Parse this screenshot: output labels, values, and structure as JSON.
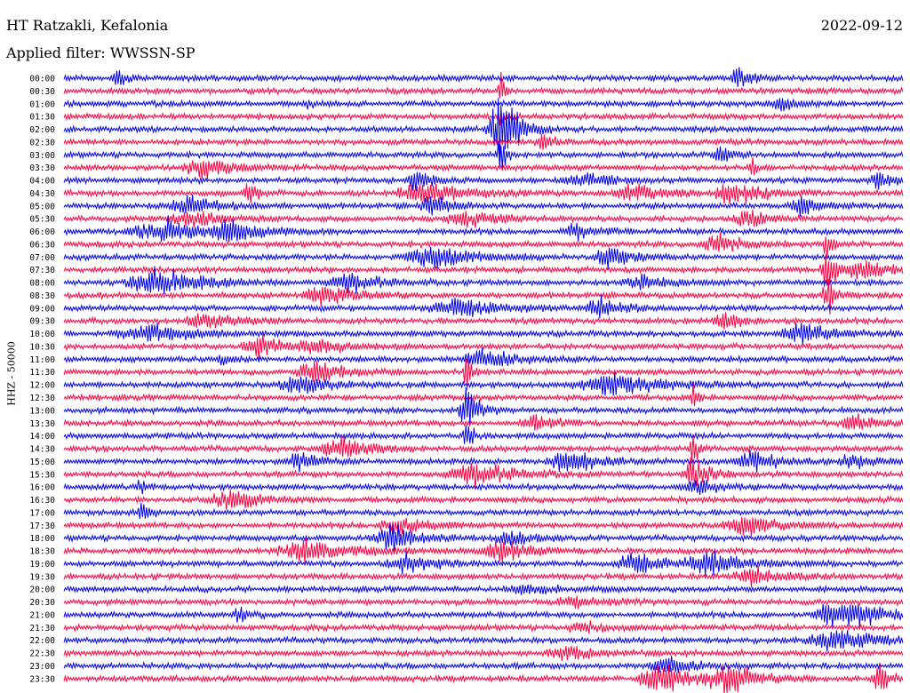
{
  "header": {
    "title": "HT Ratzakli, Kefalonia",
    "date": "2022-09-12",
    "filter": "Applied filter: WWSSN-SP"
  },
  "colors": {
    "traceA": "#0000ee",
    "traceB": "#ff0040",
    "background": "#ffffff"
  },
  "chart_data": {
    "type": "line",
    "title": "HT Ratzakli, Kefalonia",
    "ylabel": "HHZ - 50000",
    "xlabel": "",
    "grid": false,
    "legend": "none",
    "row_labels": [
      "00:00",
      "00:30",
      "01:00",
      "01:30",
      "02:00",
      "02:30",
      "03:00",
      "03:30",
      "04:00",
      "04:30",
      "05:00",
      "05:30",
      "06:00",
      "06:30",
      "07:00",
      "07:30",
      "08:00",
      "08:30",
      "09:00",
      "09:30",
      "10:00",
      "10:30",
      "11:00",
      "11:30",
      "12:00",
      "12:30",
      "13:00",
      "13:30",
      "14:00",
      "14:30",
      "15:00",
      "15:30",
      "16:00",
      "16:30",
      "17:00",
      "17:30",
      "18:00",
      "18:30",
      "19:00",
      "19:30",
      "20:00",
      "20:30",
      "21:00",
      "21:30",
      "22:00",
      "22:30",
      "23:00",
      "23:30"
    ],
    "row_colors": [
      "#0000ee",
      "#ff0040"
    ],
    "events": [
      {
        "row": 0,
        "t": 0.065,
        "amp": 0.8,
        "dur": 0.01
      },
      {
        "row": 0,
        "t": 0.805,
        "amp": 1.2,
        "dur": 0.012
      },
      {
        "row": 1,
        "t": 0.52,
        "amp": 1.8,
        "dur": 0.004
      },
      {
        "row": 2,
        "t": 0.29,
        "amp": 0.4,
        "dur": 0.006
      },
      {
        "row": 2,
        "t": 0.855,
        "amp": 0.6,
        "dur": 0.02
      },
      {
        "row": 3,
        "t": 0.52,
        "amp": 1.0,
        "dur": 0.004
      },
      {
        "row": 4,
        "t": 0.52,
        "amp": 3.5,
        "dur": 0.018
      },
      {
        "row": 5,
        "t": 0.57,
        "amp": 1.0,
        "dur": 0.01
      },
      {
        "row": 6,
        "t": 0.52,
        "amp": 2.0,
        "dur": 0.006
      },
      {
        "row": 6,
        "t": 0.78,
        "amp": 1.1,
        "dur": 0.01
      },
      {
        "row": 7,
        "t": 0.165,
        "amp": 1.0,
        "dur": 0.03
      },
      {
        "row": 7,
        "t": 0.82,
        "amp": 1.0,
        "dur": 0.006
      },
      {
        "row": 8,
        "t": 0.42,
        "amp": 1.0,
        "dur": 0.015
      },
      {
        "row": 8,
        "t": 0.62,
        "amp": 0.7,
        "dur": 0.03
      },
      {
        "row": 8,
        "t": 0.97,
        "amp": 0.8,
        "dur": 0.015
      },
      {
        "row": 9,
        "t": 0.22,
        "amp": 1.1,
        "dur": 0.01
      },
      {
        "row": 9,
        "t": 0.43,
        "amp": 1.1,
        "dur": 0.04
      },
      {
        "row": 9,
        "t": 0.68,
        "amp": 0.9,
        "dur": 0.03
      },
      {
        "row": 9,
        "t": 0.8,
        "amp": 1.1,
        "dur": 0.03
      },
      {
        "row": 10,
        "t": 0.15,
        "amp": 0.9,
        "dur": 0.03
      },
      {
        "row": 10,
        "t": 0.44,
        "amp": 1.0,
        "dur": 0.02
      },
      {
        "row": 10,
        "t": 0.88,
        "amp": 1.0,
        "dur": 0.02
      },
      {
        "row": 11,
        "t": 0.15,
        "amp": 0.8,
        "dur": 0.03
      },
      {
        "row": 11,
        "t": 0.48,
        "amp": 0.8,
        "dur": 0.03
      },
      {
        "row": 11,
        "t": 0.815,
        "amp": 1.0,
        "dur": 0.02
      },
      {
        "row": 12,
        "t": 0.12,
        "amp": 1.2,
        "dur": 0.05
      },
      {
        "row": 12,
        "t": 0.2,
        "amp": 0.8,
        "dur": 0.03
      },
      {
        "row": 12,
        "t": 0.61,
        "amp": 0.8,
        "dur": 0.02
      },
      {
        "row": 13,
        "t": 0.78,
        "amp": 0.8,
        "dur": 0.03
      },
      {
        "row": 13,
        "t": 0.91,
        "amp": 1.5,
        "dur": 0.006
      },
      {
        "row": 14,
        "t": 0.44,
        "amp": 1.1,
        "dur": 0.04
      },
      {
        "row": 14,
        "t": 0.65,
        "amp": 1.2,
        "dur": 0.02
      },
      {
        "row": 15,
        "t": 0.95,
        "amp": 1.0,
        "dur": 0.03
      },
      {
        "row": 15,
        "t": 0.91,
        "amp": 2.2,
        "dur": 0.01
      },
      {
        "row": 16,
        "t": 0.11,
        "amp": 1.5,
        "dur": 0.04
      },
      {
        "row": 16,
        "t": 0.34,
        "amp": 1.0,
        "dur": 0.03
      },
      {
        "row": 16,
        "t": 0.69,
        "amp": 0.6,
        "dur": 0.03
      },
      {
        "row": 17,
        "t": 0.31,
        "amp": 1.0,
        "dur": 0.03
      },
      {
        "row": 17,
        "t": 0.91,
        "amp": 2.0,
        "dur": 0.01
      },
      {
        "row": 18,
        "t": 0.47,
        "amp": 1.0,
        "dur": 0.04
      },
      {
        "row": 18,
        "t": 0.64,
        "amp": 1.1,
        "dur": 0.02
      },
      {
        "row": 19,
        "t": 0.17,
        "amp": 1.0,
        "dur": 0.03
      },
      {
        "row": 19,
        "t": 0.79,
        "amp": 0.8,
        "dur": 0.02
      },
      {
        "row": 20,
        "t": 0.1,
        "amp": 0.8,
        "dur": 0.05
      },
      {
        "row": 20,
        "t": 0.88,
        "amp": 1.0,
        "dur": 0.03
      },
      {
        "row": 21,
        "t": 0.23,
        "amp": 1.3,
        "dur": 0.02
      },
      {
        "row": 21,
        "t": 0.3,
        "amp": 0.7,
        "dur": 0.03
      },
      {
        "row": 22,
        "t": 0.19,
        "amp": 0.6,
        "dur": 0.01
      },
      {
        "row": 22,
        "t": 0.5,
        "amp": 1.0,
        "dur": 0.03
      },
      {
        "row": 23,
        "t": 0.3,
        "amp": 1.1,
        "dur": 0.03
      },
      {
        "row": 23,
        "t": 0.48,
        "amp": 2.0,
        "dur": 0.005
      },
      {
        "row": 24,
        "t": 0.28,
        "amp": 0.9,
        "dur": 0.03
      },
      {
        "row": 24,
        "t": 0.65,
        "amp": 1.0,
        "dur": 0.05
      },
      {
        "row": 25,
        "t": 0.75,
        "amp": 1.2,
        "dur": 0.005
      },
      {
        "row": 26,
        "t": 0.48,
        "amp": 2.2,
        "dur": 0.012
      },
      {
        "row": 27,
        "t": 0.56,
        "amp": 0.8,
        "dur": 0.02
      },
      {
        "row": 27,
        "t": 0.94,
        "amp": 0.9,
        "dur": 0.02
      },
      {
        "row": 28,
        "t": 0.48,
        "amp": 1.5,
        "dur": 0.006
      },
      {
        "row": 29,
        "t": 0.33,
        "amp": 1.2,
        "dur": 0.03
      },
      {
        "row": 29,
        "t": 0.75,
        "amp": 1.8,
        "dur": 0.006
      },
      {
        "row": 30,
        "t": 0.28,
        "amp": 0.9,
        "dur": 0.02
      },
      {
        "row": 30,
        "t": 0.6,
        "amp": 1.2,
        "dur": 0.03
      },
      {
        "row": 30,
        "t": 0.82,
        "amp": 1.0,
        "dur": 0.03
      },
      {
        "row": 30,
        "t": 0.94,
        "amp": 0.8,
        "dur": 0.02
      },
      {
        "row": 31,
        "t": 0.49,
        "amp": 1.2,
        "dur": 0.04
      },
      {
        "row": 31,
        "t": 0.75,
        "amp": 1.6,
        "dur": 0.015
      },
      {
        "row": 32,
        "t": 0.09,
        "amp": 1.0,
        "dur": 0.004
      },
      {
        "row": 32,
        "t": 0.75,
        "amp": 0.9,
        "dur": 0.02
      },
      {
        "row": 33,
        "t": 0.2,
        "amp": 1.0,
        "dur": 0.03
      },
      {
        "row": 34,
        "t": 0.095,
        "amp": 1.2,
        "dur": 0.008
      },
      {
        "row": 35,
        "t": 0.4,
        "amp": 0.9,
        "dur": 0.03
      },
      {
        "row": 35,
        "t": 0.81,
        "amp": 1.0,
        "dur": 0.03
      },
      {
        "row": 36,
        "t": 0.39,
        "amp": 1.2,
        "dur": 0.03
      },
      {
        "row": 36,
        "t": 0.53,
        "amp": 0.9,
        "dur": 0.02
      },
      {
        "row": 37,
        "t": 0.29,
        "amp": 1.0,
        "dur": 0.05
      },
      {
        "row": 37,
        "t": 0.52,
        "amp": 1.2,
        "dur": 0.03
      },
      {
        "row": 38,
        "t": 0.41,
        "amp": 1.0,
        "dur": 0.03
      },
      {
        "row": 38,
        "t": 0.68,
        "amp": 1.0,
        "dur": 0.03
      },
      {
        "row": 38,
        "t": 0.77,
        "amp": 1.0,
        "dur": 0.04
      },
      {
        "row": 39,
        "t": 0.82,
        "amp": 0.9,
        "dur": 0.03
      },
      {
        "row": 40,
        "t": 0.55,
        "amp": 0.5,
        "dur": 0.03
      },
      {
        "row": 41,
        "t": 0.61,
        "amp": 0.5,
        "dur": 0.03
      },
      {
        "row": 42,
        "t": 0.21,
        "amp": 1.0,
        "dur": 0.01
      },
      {
        "row": 42,
        "t": 0.91,
        "amp": 1.3,
        "dur": 0.02
      },
      {
        "row": 42,
        "t": 0.95,
        "amp": 0.8,
        "dur": 0.04
      },
      {
        "row": 43,
        "t": 0.62,
        "amp": 0.4,
        "dur": 0.03
      },
      {
        "row": 44,
        "t": 0.92,
        "amp": 1.2,
        "dur": 0.04
      },
      {
        "row": 45,
        "t": 0.6,
        "amp": 0.6,
        "dur": 0.03
      },
      {
        "row": 46,
        "t": 0.72,
        "amp": 0.8,
        "dur": 0.03
      },
      {
        "row": 47,
        "t": 0.71,
        "amp": 1.6,
        "dur": 0.03
      },
      {
        "row": 47,
        "t": 0.79,
        "amp": 1.4,
        "dur": 0.03
      },
      {
        "row": 47,
        "t": 0.97,
        "amp": 1.7,
        "dur": 0.01
      }
    ]
  }
}
